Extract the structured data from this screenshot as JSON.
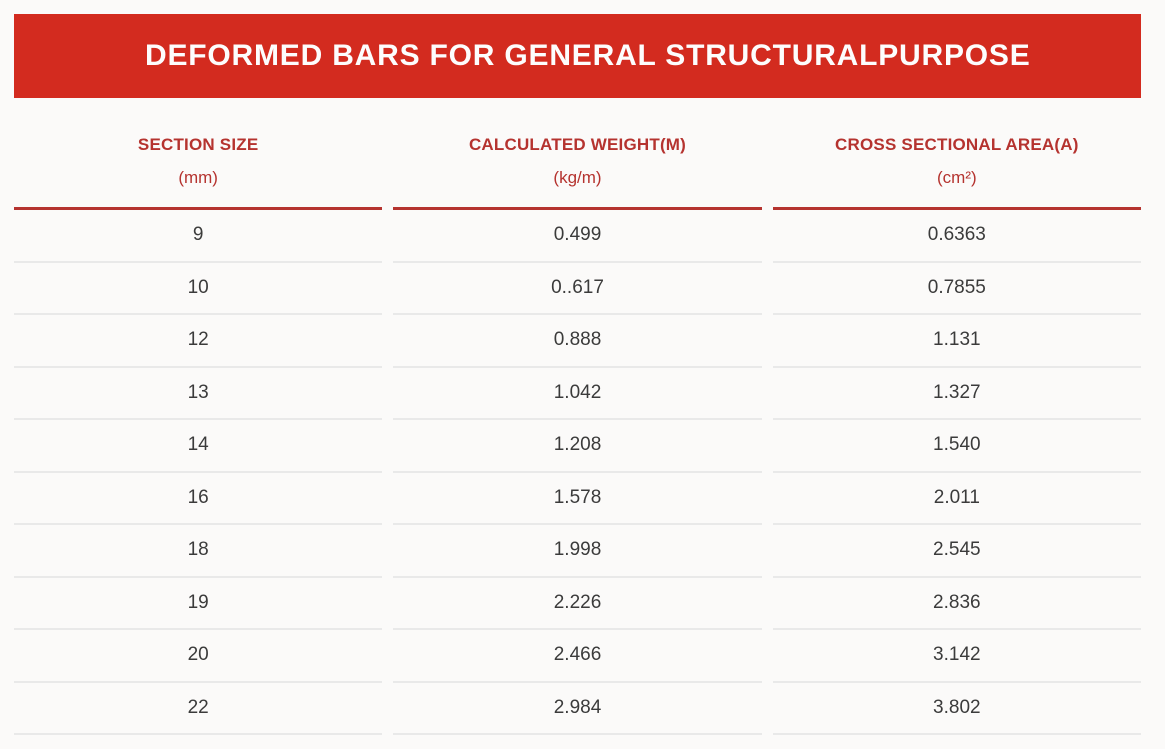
{
  "colors": {
    "banner_red": "#d32b1f",
    "header_red": "#b5332f",
    "row_divider": "#e9e9e9",
    "data_text": "#3b3b3b",
    "banner_text": "#ffffff"
  },
  "banner": {
    "title": "DEFORMED BARS FOR GENERAL STRUCTURALPURPOSE"
  },
  "table": {
    "columns": [
      {
        "label": "SECTION SIZE",
        "unit": "(mm)"
      },
      {
        "label": "CALCULATED WEIGHT(M)",
        "unit": "(kg/m)"
      },
      {
        "label": "CROSS SECTIONAL AREA(A)",
        "unit": "(cm²)"
      }
    ],
    "rows": [
      [
        "9",
        "0.499",
        "0.6363"
      ],
      [
        "10",
        "0..617",
        "0.7855"
      ],
      [
        "12",
        "0.888",
        "1.131"
      ],
      [
        "13",
        "1.042",
        "1.327"
      ],
      [
        "14",
        "1.208",
        "1.540"
      ],
      [
        "16",
        "1.578",
        "2.011"
      ],
      [
        "18",
        "1.998",
        "2.545"
      ],
      [
        "19",
        "2.226",
        "2.836"
      ],
      [
        "20",
        "2.466",
        "3.142"
      ],
      [
        "22",
        "2.984",
        "3.802"
      ]
    ]
  },
  "chart_data": {
    "type": "table",
    "title": "DEFORMED BARS FOR GENERAL STRUCTURALPURPOSE",
    "columns": [
      "SECTION SIZE (mm)",
      "CALCULATED WEIGHT(M) (kg/m)",
      "CROSS SECTIONAL AREA(A) (cm²)"
    ],
    "rows": [
      [
        9,
        "0.499",
        "0.6363"
      ],
      [
        10,
        "0..617",
        "0.7855"
      ],
      [
        12,
        "0.888",
        "1.131"
      ],
      [
        13,
        "1.042",
        "1.327"
      ],
      [
        14,
        "1.208",
        "1.540"
      ],
      [
        16,
        "1.578",
        "2.011"
      ],
      [
        18,
        "1.998",
        "2.545"
      ],
      [
        19,
        "2.226",
        "2.836"
      ],
      [
        20,
        "2.466",
        "3.142"
      ],
      [
        22,
        "2.984",
        "3.802"
      ]
    ],
    "legend_position": "none",
    "grid": "horizontal-row-dividers"
  }
}
